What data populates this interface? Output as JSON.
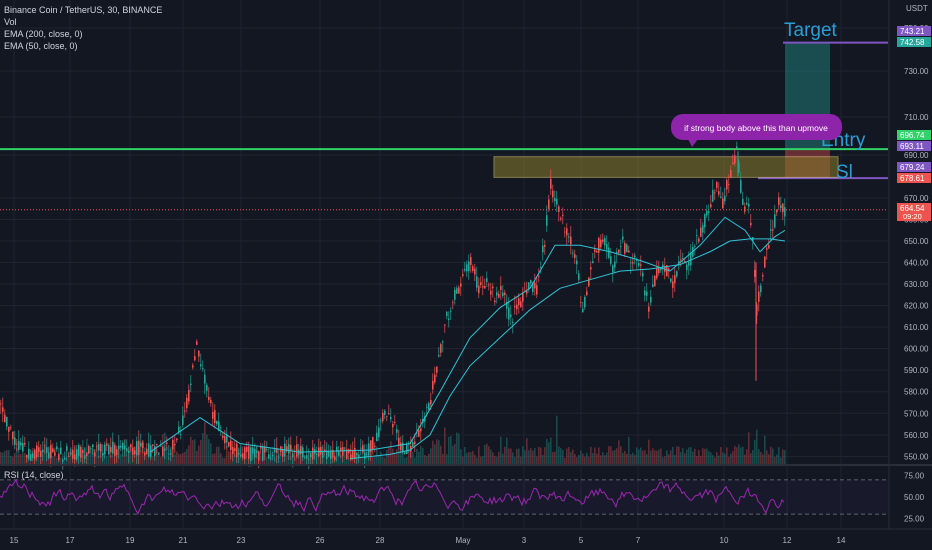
{
  "legend": {
    "symbol": "Binance Coin / TetherUS, 30, BINANCE",
    "vol": "Vol",
    "ema200": "EMA (200, close, 0)",
    "ema50": "EMA (50, close, 0)",
    "rsi": "RSI (14, close)"
  },
  "currency": "USDT",
  "annotations": {
    "target": "Target",
    "entry": "Entry",
    "sl": "Sl",
    "callout": "if strong body above this than upmove"
  },
  "colors": {
    "background": "#131722",
    "up": "#26a69a",
    "down": "#ef5350",
    "ema": "#2ec4d6",
    "entry_line": "#33d16a",
    "level_line": "#7e57c2",
    "rsi": "#9c27b0",
    "zone_fill": "#8a7d2a",
    "zone_border": "#e8d57a",
    "target_zone": "#26a69a",
    "stop_zone": "#ef5350"
  },
  "chart_data": {
    "type": "candlestick",
    "x_ticks": [
      "15",
      "17",
      "19",
      "21",
      "23",
      "26",
      "28",
      "May",
      "3",
      "5",
      "7",
      "10",
      "12",
      "14"
    ],
    "y_ticks": [
      550,
      560,
      570,
      580,
      590,
      600,
      610,
      620,
      630,
      640,
      650,
      660,
      670,
      690,
      710,
      730,
      750
    ],
    "ylim": [
      547,
      766
    ],
    "price_labels": [
      {
        "value": 743.21,
        "text": "743.21",
        "color": "#7e57c2"
      },
      {
        "value": 742.58,
        "text": "742.58",
        "color": "#26a69a"
      },
      {
        "value": 696.74,
        "text": "696.74",
        "color": "#33d16a"
      },
      {
        "value": 693.11,
        "text": "693.11",
        "color": "#7e57c2"
      },
      {
        "value": 679.24,
        "text": "679.24",
        "color": "#7e57c2"
      },
      {
        "value": 678.61,
        "text": "678.61",
        "color": "#ef5350"
      },
      {
        "value": 664.54,
        "text": "664.54",
        "color": "#ef5350",
        "sub": "09:20"
      }
    ],
    "levels": {
      "entry": 693.11,
      "target": 743.21,
      "stop": 679.24,
      "zone_low": 679.6,
      "zone_high": 689.2
    },
    "last_price": 664.54,
    "price_path": [
      [
        0,
        572
      ],
      [
        14,
        558
      ],
      [
        28,
        551
      ],
      [
        45,
        553
      ],
      [
        60,
        551
      ],
      [
        80,
        552
      ],
      [
        100,
        554
      ],
      [
        120,
        553
      ],
      [
        140,
        554
      ],
      [
        160,
        552
      ],
      [
        175,
        555
      ],
      [
        188,
        578
      ],
      [
        196,
        600
      ],
      [
        203,
        587
      ],
      [
        210,
        573
      ],
      [
        218,
        563
      ],
      [
        232,
        553
      ],
      [
        250,
        551
      ],
      [
        270,
        552
      ],
      [
        290,
        553
      ],
      [
        310,
        551
      ],
      [
        330,
        552
      ],
      [
        350,
        551
      ],
      [
        365,
        552
      ],
      [
        378,
        560
      ],
      [
        385,
        572
      ],
      [
        392,
        565
      ],
      [
        400,
        556
      ],
      [
        408,
        553
      ],
      [
        418,
        560
      ],
      [
        428,
        573
      ],
      [
        436,
        590
      ],
      [
        444,
        611
      ],
      [
        452,
        622
      ],
      [
        460,
        630
      ],
      [
        470,
        641
      ],
      [
        478,
        628
      ],
      [
        486,
        630
      ],
      [
        494,
        624
      ],
      [
        502,
        627
      ],
      [
        510,
        613
      ],
      [
        518,
        620
      ],
      [
        528,
        630
      ],
      [
        536,
        628
      ],
      [
        544,
        650
      ],
      [
        550,
        676
      ],
      [
        556,
        669
      ],
      [
        562,
        660
      ],
      [
        570,
        650
      ],
      [
        576,
        640
      ],
      [
        582,
        617
      ],
      [
        588,
        631
      ],
      [
        595,
        645
      ],
      [
        602,
        652
      ],
      [
        612,
        638
      ],
      [
        620,
        650
      ],
      [
        630,
        643
      ],
      [
        640,
        636
      ],
      [
        648,
        619
      ],
      [
        656,
        635
      ],
      [
        664,
        639
      ],
      [
        672,
        630
      ],
      [
        680,
        641
      ],
      [
        688,
        638
      ],
      [
        695,
        650
      ],
      [
        702,
        656
      ],
      [
        710,
        668
      ],
      [
        716,
        676
      ],
      [
        722,
        668
      ],
      [
        730,
        682
      ],
      [
        736,
        691
      ],
      [
        742,
        668
      ],
      [
        748,
        664
      ],
      [
        752,
        650
      ],
      [
        756,
        618
      ],
      [
        760,
        628
      ],
      [
        766,
        646
      ],
      [
        772,
        655
      ],
      [
        778,
        668
      ],
      [
        784,
        664.5
      ]
    ],
    "ema50_path": [
      [
        150,
        552
      ],
      [
        200,
        568
      ],
      [
        240,
        556
      ],
      [
        300,
        552
      ],
      [
        370,
        553
      ],
      [
        410,
        556
      ],
      [
        440,
        580
      ],
      [
        470,
        605
      ],
      [
        500,
        619
      ],
      [
        530,
        628
      ],
      [
        555,
        648
      ],
      [
        580,
        648
      ],
      [
        610,
        645
      ],
      [
        640,
        641
      ],
      [
        670,
        636
      ],
      [
        700,
        648
      ],
      [
        725,
        661
      ],
      [
        745,
        655
      ],
      [
        760,
        645
      ],
      [
        775,
        652
      ],
      [
        785,
        655
      ]
    ],
    "ema200_path": [
      [
        350,
        549
      ],
      [
        390,
        551
      ],
      [
        410,
        553
      ],
      [
        430,
        560
      ],
      [
        450,
        578
      ],
      [
        470,
        592
      ],
      [
        500,
        605
      ],
      [
        530,
        618
      ],
      [
        560,
        628
      ],
      [
        590,
        632
      ],
      [
        620,
        636
      ],
      [
        650,
        637
      ],
      [
        680,
        639
      ],
      [
        710,
        645
      ],
      [
        730,
        650
      ],
      [
        750,
        651
      ],
      [
        770,
        651
      ],
      [
        785,
        650
      ]
    ],
    "rsi": {
      "levels": [
        70,
        50,
        30
      ],
      "tick_labels": [
        "75.00",
        "50.00",
        "25.00"
      ],
      "ylim": [
        15,
        85
      ]
    }
  }
}
